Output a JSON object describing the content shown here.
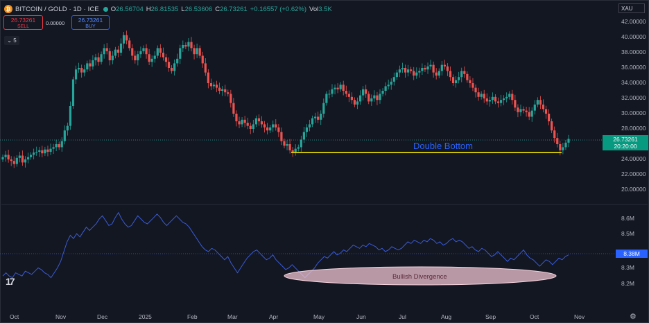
{
  "header": {
    "symbol": "BITCOIN / GOLD · 1D · ICE",
    "ohlc": [
      {
        "k": "O",
        "v": "26.56704"
      },
      {
        "k": "H",
        "v": "26.81535"
      },
      {
        "k": "L",
        "v": "26.53606"
      },
      {
        "k": "C",
        "v": "26.73261"
      },
      {
        "k": "",
        "v": "+0.16557 (+0.62%)"
      },
      {
        "k": "Vol",
        "v": "3.5K"
      }
    ]
  },
  "trade": {
    "sell_price": "26.73261",
    "sell_label": "SELL",
    "buy_price": "26.73261",
    "buy_label": "BUY",
    "spread": "0.00000"
  },
  "indicator_toggle": "5",
  "currency": "XAU",
  "price_axis": [
    "42.00000",
    "40.00000",
    "38.00000",
    "36.00000",
    "34.00000",
    "32.00000",
    "30.00000",
    "28.00000",
    "24.00000",
    "22.00000",
    "20.00000"
  ],
  "volume_axis": [
    "8.6M",
    "8.5M",
    "8.3M",
    "8.2M"
  ],
  "time_axis": [
    "Oct",
    "Nov",
    "Dec",
    "2025",
    "Feb",
    "Mar",
    "Apr",
    "May",
    "Jun",
    "Jul",
    "Aug",
    "Sep",
    "Oct",
    "Nov"
  ],
  "last_price": {
    "value": "26.73261",
    "countdown": "20:20:00"
  },
  "last_volume": "8.38M",
  "annotations": {
    "double_bottom": "Double Bottom",
    "bullish_divergence": "Bullish Divergence"
  },
  "colors": {
    "up": "#26a69a",
    "down": "#ef5350",
    "support": "#f2e600",
    "volume_line": "#3a5bd9",
    "ellipse_fill": "#f1c4d2"
  },
  "chart_data": {
    "type": "candlestick",
    "support_level": 24.9,
    "y_range": [
      18.0,
      42.0
    ],
    "closes": [
      24.3,
      24.6,
      24.0,
      23.8,
      23.4,
      24.2,
      24.5,
      23.6,
      24.0,
      24.3,
      24.6,
      24.9,
      25.0,
      25.2,
      24.8,
      25.3,
      25.0,
      25.4,
      25.6,
      26.0,
      25.6,
      26.4,
      27.8,
      28.4,
      31.0,
      34.5,
      35.8,
      36.0,
      35.4,
      35.8,
      36.6,
      36.2,
      37.0,
      37.4,
      36.8,
      37.8,
      38.6,
      38.2,
      37.0,
      37.6,
      38.4,
      38.0,
      39.2,
      40.3,
      39.6,
      38.6,
      37.6,
      37.0,
      37.8,
      38.2,
      38.6,
      37.8,
      36.8,
      37.2,
      37.6,
      38.6,
      38.0,
      37.4,
      36.8,
      36.0,
      35.6,
      36.6,
      37.2,
      38.6,
      39.0,
      38.8,
      39.4,
      38.6,
      37.8,
      38.6,
      37.6,
      36.6,
      35.4,
      34.0,
      33.6,
      33.8,
      33.4,
      33.0,
      33.2,
      32.8,
      32.6,
      31.4,
      30.0,
      29.0,
      28.6,
      29.2,
      28.8,
      28.4,
      28.0,
      28.6,
      29.4,
      29.0,
      28.6,
      28.2,
      27.8,
      28.2,
      28.6,
      28.2,
      27.6,
      26.4,
      25.8,
      26.0,
      25.2,
      25.0,
      25.4,
      25.6,
      26.6,
      27.6,
      28.2,
      28.6,
      29.4,
      29.6,
      29.2,
      30.0,
      31.4,
      32.6,
      32.6,
      33.2,
      33.4,
      33.2,
      33.8,
      33.0,
      32.6,
      32.2,
      31.8,
      31.2,
      31.6,
      32.4,
      33.2,
      32.6,
      31.6,
      32.0,
      32.4,
      31.8,
      32.6,
      33.0,
      33.6,
      33.8,
      34.2,
      34.8,
      35.4,
      35.8,
      36.0,
      35.4,
      35.8,
      35.6,
      35.0,
      35.4,
      35.6,
      36.0,
      35.8,
      36.2,
      36.4,
      35.4,
      35.0,
      35.6,
      36.4,
      36.2,
      35.6,
      34.8,
      34.0,
      34.4,
      34.8,
      35.6,
      35.2,
      34.4,
      34.0,
      33.4,
      32.8,
      32.2,
      32.6,
      32.0,
      31.6,
      31.8,
      32.2,
      31.6,
      31.4,
      31.8,
      32.0,
      32.2,
      32.6,
      31.8,
      30.8,
      30.2,
      30.6,
      30.4,
      30.2,
      29.6,
      30.4,
      31.2,
      31.8,
      31.2,
      30.6,
      30.0,
      29.0,
      27.8,
      26.8,
      26.0,
      25.2,
      25.6,
      26.2,
      26.7
    ],
    "volume_series": [
      8.25,
      8.27,
      8.25,
      8.24,
      8.27,
      8.26,
      8.25,
      8.28,
      8.27,
      8.26,
      8.28,
      8.3,
      8.29,
      8.27,
      8.26,
      8.24,
      8.27,
      8.3,
      8.34,
      8.4,
      8.46,
      8.5,
      8.48,
      8.51,
      8.49,
      8.52,
      8.55,
      8.53,
      8.55,
      8.57,
      8.6,
      8.62,
      8.59,
      8.56,
      8.57,
      8.61,
      8.64,
      8.6,
      8.57,
      8.55,
      8.56,
      8.59,
      8.62,
      8.6,
      8.58,
      8.57,
      8.59,
      8.61,
      8.63,
      8.61,
      8.58,
      8.56,
      8.58,
      8.6,
      8.62,
      8.6,
      8.58,
      8.57,
      8.55,
      8.52,
      8.49,
      8.46,
      8.43,
      8.41,
      8.4,
      8.42,
      8.41,
      8.39,
      8.37,
      8.35,
      8.37,
      8.33,
      8.3,
      8.27,
      8.3,
      8.33,
      8.36,
      8.38,
      8.4,
      8.41,
      8.39,
      8.37,
      8.35,
      8.36,
      8.38,
      8.35,
      8.33,
      8.31,
      8.29,
      8.3,
      8.32,
      8.3,
      8.28,
      8.26,
      8.24,
      8.26,
      8.28,
      8.3,
      8.33,
      8.35,
      8.37,
      8.36,
      8.38,
      8.4,
      8.38,
      8.39,
      8.41,
      8.4,
      8.42,
      8.44,
      8.43,
      8.42,
      8.44,
      8.43,
      8.45,
      8.44,
      8.43,
      8.41,
      8.42,
      8.4,
      8.41,
      8.43,
      8.42,
      8.41,
      8.42,
      8.44,
      8.46,
      8.45,
      8.47,
      8.46,
      8.45,
      8.47,
      8.46,
      8.48,
      8.47,
      8.45,
      8.46,
      8.44,
      8.45,
      8.47,
      8.48,
      8.46,
      8.47,
      8.46,
      8.44,
      8.42,
      8.43,
      8.41,
      8.4,
      8.42,
      8.41,
      8.39,
      8.37,
      8.38,
      8.4,
      8.38,
      8.36,
      8.34,
      8.36,
      8.35,
      8.37,
      8.39,
      8.41,
      8.38,
      8.36,
      8.35,
      8.33,
      8.31,
      8.33,
      8.35,
      8.34,
      8.32,
      8.34,
      8.36,
      8.35,
      8.37,
      8.38
    ],
    "volume_range": [
      8.15,
      8.68
    ]
  }
}
